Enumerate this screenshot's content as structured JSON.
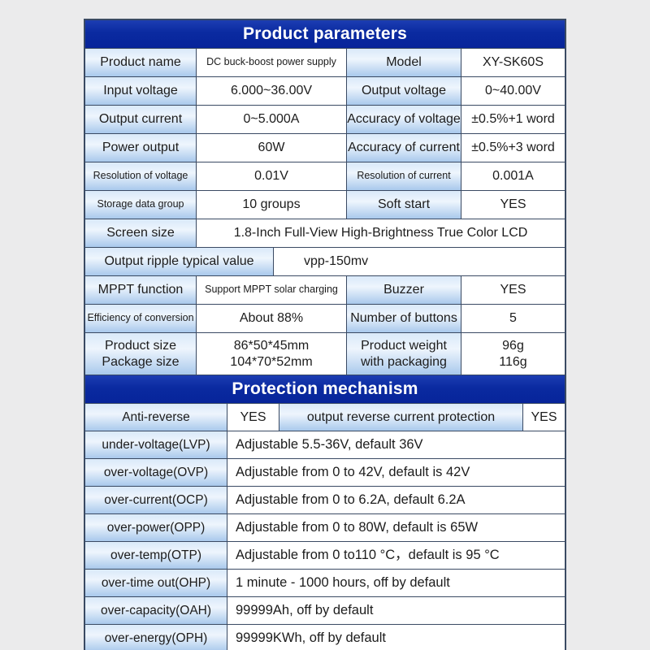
{
  "colors": {
    "header_blue": "#0a2aa0",
    "label_top": "#d9e9f9",
    "label_mid": "#eef5fd",
    "label_bottom": "#a9c9ec",
    "border": "#3a4a63",
    "page_bg": "#ebebec",
    "text": "#1c1c1c"
  },
  "product": {
    "title": "Product parameters",
    "row_name": {
      "l1": "Product name",
      "v1": "DC buck-boost power supply",
      "l2": "Model",
      "v2": "XY-SK60S"
    },
    "row_voltage": {
      "l1": "Input voltage",
      "v1": "6.000~36.00V",
      "l2": "Output voltage",
      "v2": "0~40.00V"
    },
    "row_current": {
      "l1": "Output current",
      "v1": "0~5.000A",
      "l2": "Accuracy of voltage",
      "v2": "±0.5%+1 word"
    },
    "row_power": {
      "l1": "Power output",
      "v1": "60W",
      "l2": "Accuracy of current",
      "v2": "±0.5%+3 word"
    },
    "row_resolution": {
      "l1": "Resolution of voltage",
      "v1": "0.01V",
      "l2": "Resolution of current",
      "v2": "0.001A"
    },
    "row_storage": {
      "l1": "Storage data group",
      "v1": "10 groups",
      "l2": "Soft start",
      "v2": "YES"
    },
    "row_screen": {
      "l1": "Screen size",
      "v1": "1.8-Inch Full-View High-Brightness True Color LCD"
    },
    "row_ripple": {
      "l1": "Output ripple typical value",
      "v1": "vpp-150mv"
    },
    "row_mppt": {
      "l1": "MPPT function",
      "v1": "Support MPPT solar charging",
      "l2": "Buzzer",
      "v2": "YES"
    },
    "row_efficiency": {
      "l1": "Efficiency of conversion",
      "v1": "About 88%",
      "l2": "Number of buttons",
      "v2": "5"
    },
    "row_size": {
      "l1a": "Product size",
      "l1b": "Package size",
      "v1a": "86*50*45mm",
      "v1b": "104*70*52mm",
      "l2a": "Product weight",
      "l2b": "with packaging",
      "v2a": "96g",
      "v2b": "116g"
    }
  },
  "protection": {
    "title": "Protection mechanism",
    "row_reverse": {
      "l1": "Anti-reverse",
      "v1": "YES",
      "l2": "output reverse current protection",
      "v2": "YES"
    },
    "rows": [
      {
        "label": "under-voltage(LVP)",
        "value": "Adjustable 5.5-36V, default 36V"
      },
      {
        "label": "over-voltage(OVP)",
        "value": "Adjustable from 0 to 42V, default is 42V"
      },
      {
        "label": "over-current(OCP)",
        "value": "Adjustable from 0 to 6.2A, default 6.2A"
      },
      {
        "label": "over-power(OPP)",
        "value": "Adjustable from 0 to 80W, default is 65W"
      },
      {
        "label": "over-temp(OTP)",
        "value": "Adjustable from 0 to110 °C，default is 95 °C"
      },
      {
        "label": "over-time out(OHP)",
        "value": "1 minute - 1000 hours, off by default"
      },
      {
        "label": "over-capacity(OAH)",
        "value": "99999Ah, off by default"
      },
      {
        "label": "over-energy(OPH)",
        "value": "99999KWh, off by default"
      }
    ]
  }
}
